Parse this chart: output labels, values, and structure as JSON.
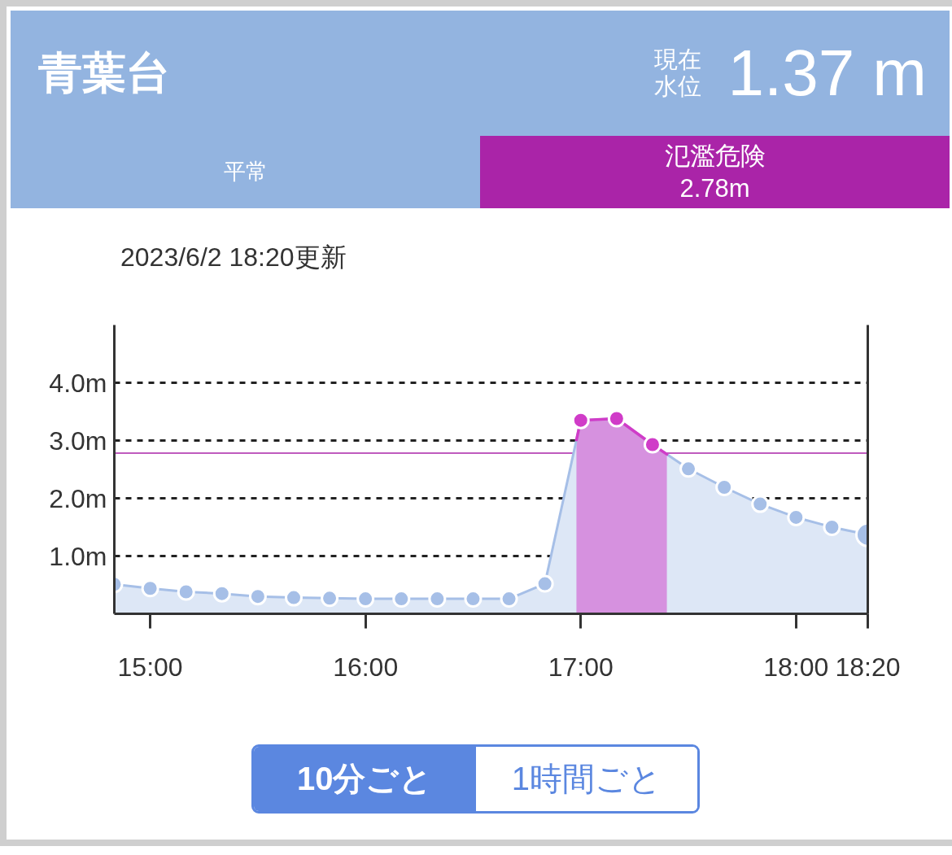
{
  "chart_data": {
    "type": "area",
    "title": "青葉台",
    "subtitle": "2023/6/2 18:20更新",
    "x": [
      14.8333,
      15,
      15.1667,
      15.3333,
      15.5,
      15.6667,
      15.8333,
      16,
      16.1667,
      16.3333,
      16.5,
      16.6667,
      16.8333,
      17,
      17.1667,
      17.3333,
      17.5,
      17.6667,
      17.8333,
      18,
      18.1667,
      18.3333
    ],
    "xlim": [
      14.8333,
      18.3333
    ],
    "xticks": [
      {
        "value": 15,
        "label": "15:00"
      },
      {
        "value": 16,
        "label": "16:00"
      },
      {
        "value": 17,
        "label": "17:00"
      },
      {
        "value": 18,
        "label": "18:00"
      },
      {
        "value": 18.3333,
        "label": "18:20"
      }
    ],
    "ylim": [
      0,
      5
    ],
    "yticks": [
      {
        "value": 1,
        "label": "1.0m"
      },
      {
        "value": 2,
        "label": "2.0m"
      },
      {
        "value": 3,
        "label": "3.0m"
      },
      {
        "value": 4,
        "label": "4.0m"
      }
    ],
    "grid": "y",
    "marker": "circle",
    "series": [
      {
        "color": "#a6bfe7",
        "values": [
          0.51,
          0.44,
          0.38,
          0.35,
          0.3,
          0.28,
          0.27,
          0.26,
          0.26,
          0.26,
          0.26,
          0.26,
          0.52,
          3.35,
          3.38,
          2.93,
          2.51,
          2.19,
          1.9,
          1.67,
          1.5,
          1.37
        ],
        "colors": [
          "#a6bfe7",
          "#a6bfe7",
          "#a6bfe7",
          "#a6bfe7",
          "#a6bfe7",
          "#a6bfe7",
          "#a6bfe7",
          "#a6bfe7",
          "#a6bfe7",
          "#a6bfe7",
          "#a6bfe7",
          "#a6bfe7",
          "#a6bfe7",
          "#d03cc8",
          "#d03cc8",
          "#d03cc8",
          "#a6bfe7",
          "#a6bfe7",
          "#a6bfe7",
          "#a6bfe7",
          "#a6bfe7",
          "#a6bfe7"
        ]
      }
    ],
    "ref_lines": [
      {
        "axis": "y",
        "value": 2.78,
        "color": "#aa24a8"
      }
    ],
    "bands": [
      {
        "axis": "x",
        "from": 16.98,
        "to": 17.4,
        "color": "#d03cc8"
      }
    ],
    "annotations": [
      "現在水位",
      "1.37 m",
      "平常",
      "氾濫危険 2.78m",
      "10分ごと",
      "1時間ごと"
    ]
  }
}
